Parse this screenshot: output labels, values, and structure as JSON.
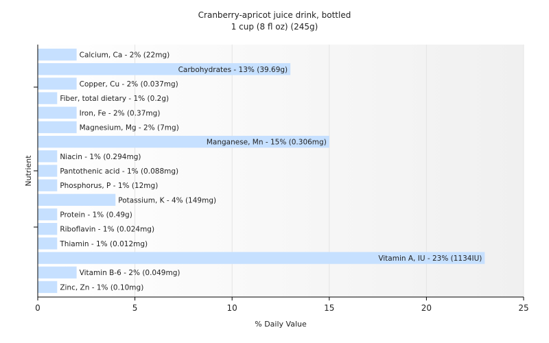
{
  "chart_data": {
    "type": "bar",
    "orientation": "horizontal",
    "title": "Cranberry-apricot juice drink, bottled",
    "subtitle": "1 cup (8 fl oz) (245g)",
    "xlabel": "% Daily Value",
    "ylabel": "Nutrient",
    "xlim": [
      0,
      25
    ],
    "xticks": [
      0,
      5,
      10,
      15,
      20,
      25
    ],
    "grid": true,
    "bar_color": "#c6e0ff",
    "categories": [
      "Calcium, Ca",
      "Carbohydrates",
      "Copper, Cu",
      "Fiber, total dietary",
      "Iron, Fe",
      "Magnesium, Mg",
      "Manganese, Mn",
      "Niacin",
      "Pantothenic acid",
      "Phosphorus, P",
      "Potassium, K",
      "Protein",
      "Riboflavin",
      "Thiamin",
      "Vitamin A, IU",
      "Vitamin B-6",
      "Zinc, Zn"
    ],
    "values": [
      2,
      13,
      2,
      1,
      2,
      2,
      15,
      1,
      1,
      1,
      4,
      1,
      1,
      1,
      23,
      2,
      1
    ],
    "labels": [
      "Calcium, Ca - 2% (22mg)",
      "Carbohydrates - 13% (39.69g)",
      "Copper, Cu - 2% (0.037mg)",
      "Fiber, total dietary - 1% (0.2g)",
      "Iron, Fe - 2% (0.37mg)",
      "Magnesium, Mg - 2% (7mg)",
      "Manganese, Mn - 15% (0.306mg)",
      "Niacin - 1% (0.294mg)",
      "Pantothenic acid - 1% (0.088mg)",
      "Phosphorus, P - 1% (12mg)",
      "Potassium, K - 4% (149mg)",
      "Protein - 1% (0.49g)",
      "Riboflavin - 1% (0.024mg)",
      "Thiamin - 1% (0.012mg)",
      "Vitamin A, IU - 23% (1134IU)",
      "Vitamin B-6 - 2% (0.049mg)",
      "Zinc, Zn - 1% (0.10mg)"
    ]
  }
}
